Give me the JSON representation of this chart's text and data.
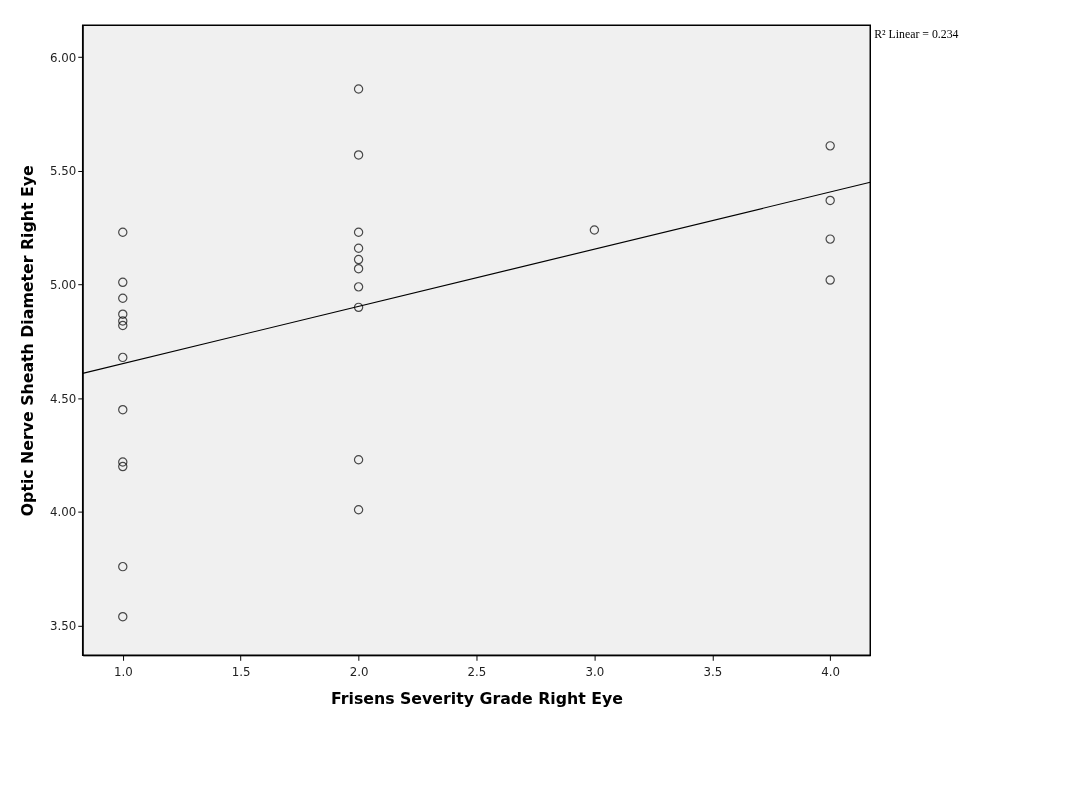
{
  "chart_data": {
    "type": "scatter",
    "xlabel": "Frisens Severity Grade Right Eye",
    "ylabel": "Optic Nerve Sheath Diameter Right Eye",
    "annotations": [
      "R² Linear = 0.234"
    ],
    "series": [
      {
        "color": "#000000",
        "marker": "circle",
        "x": [
          1,
          1,
          1,
          1,
          1,
          1,
          1,
          1,
          1,
          1,
          1,
          1,
          2,
          2,
          2,
          2,
          2,
          2,
          2,
          2,
          2,
          2,
          3,
          4,
          4,
          4,
          4
        ],
        "values": [
          5.23,
          5.01,
          4.94,
          4.87,
          4.84,
          4.82,
          4.68,
          4.45,
          4.22,
          4.2,
          3.76,
          3.54,
          5.86,
          5.57,
          5.23,
          5.16,
          5.11,
          5.07,
          4.99,
          4.9,
          4.23,
          4.01,
          5.24,
          5.61,
          5.37,
          5.2,
          5.02
        ]
      },
      {
        "type": "line",
        "color": "#000000",
        "line_style": "solid",
        "x": [
          0.83,
          4.17
        ],
        "values": [
          4.61,
          5.45
        ]
      }
    ],
    "xlim": [
      0.83,
      4.17
    ],
    "ylim": [
      3.37,
      6.14
    ],
    "xticks": [
      {
        "value": 1,
        "label": "1.0"
      },
      {
        "value": 1.5,
        "label": "1.5"
      },
      {
        "value": 2,
        "label": "2.0"
      },
      {
        "value": 2.5,
        "label": "2.5"
      },
      {
        "value": 3,
        "label": "3.0"
      },
      {
        "value": 3.5,
        "label": "3.5"
      },
      {
        "value": 4,
        "label": "4.0"
      }
    ],
    "yticks": [
      {
        "value": 3.5,
        "label": "3.50"
      },
      {
        "value": 4,
        "label": "4.00"
      },
      {
        "value": 4.5,
        "label": "4.50"
      },
      {
        "value": 5,
        "label": "5.00"
      },
      {
        "value": 5.5,
        "label": "5.50"
      },
      {
        "value": 6,
        "label": "6.00"
      }
    ],
    "grid": false
  }
}
